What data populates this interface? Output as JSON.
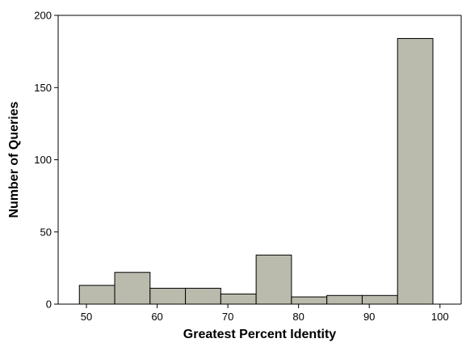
{
  "chart_data": {
    "type": "bar",
    "title": "",
    "xlabel": "Greatest Percent Identity",
    "ylabel": "Number of Queries",
    "bins": [
      {
        "start": 49,
        "end": 54,
        "value": 13
      },
      {
        "start": 54,
        "end": 59,
        "value": 22
      },
      {
        "start": 59,
        "end": 64,
        "value": 11
      },
      {
        "start": 64,
        "end": 69,
        "value": 11
      },
      {
        "start": 69,
        "end": 74,
        "value": 7
      },
      {
        "start": 74,
        "end": 79,
        "value": 34
      },
      {
        "start": 79,
        "end": 84,
        "value": 5
      },
      {
        "start": 84,
        "end": 89,
        "value": 6
      },
      {
        "start": 89,
        "end": 94,
        "value": 6
      },
      {
        "start": 94,
        "end": 99,
        "value": 184
      }
    ],
    "xlim": [
      46,
      103
    ],
    "ylim": [
      0,
      200
    ],
    "xticks": [
      50,
      60,
      70,
      80,
      90,
      100
    ],
    "xtick_labels": [
      "50",
      "60",
      "70",
      "80",
      "90",
      "100"
    ],
    "yticks": [
      0,
      50,
      100,
      150,
      200
    ],
    "ytick_labels": [
      "0",
      "50",
      "100",
      "150",
      "200"
    ],
    "grid": false,
    "legend": "none",
    "bar_color": "#bbbbad",
    "bar_edge_color": "#000000"
  }
}
